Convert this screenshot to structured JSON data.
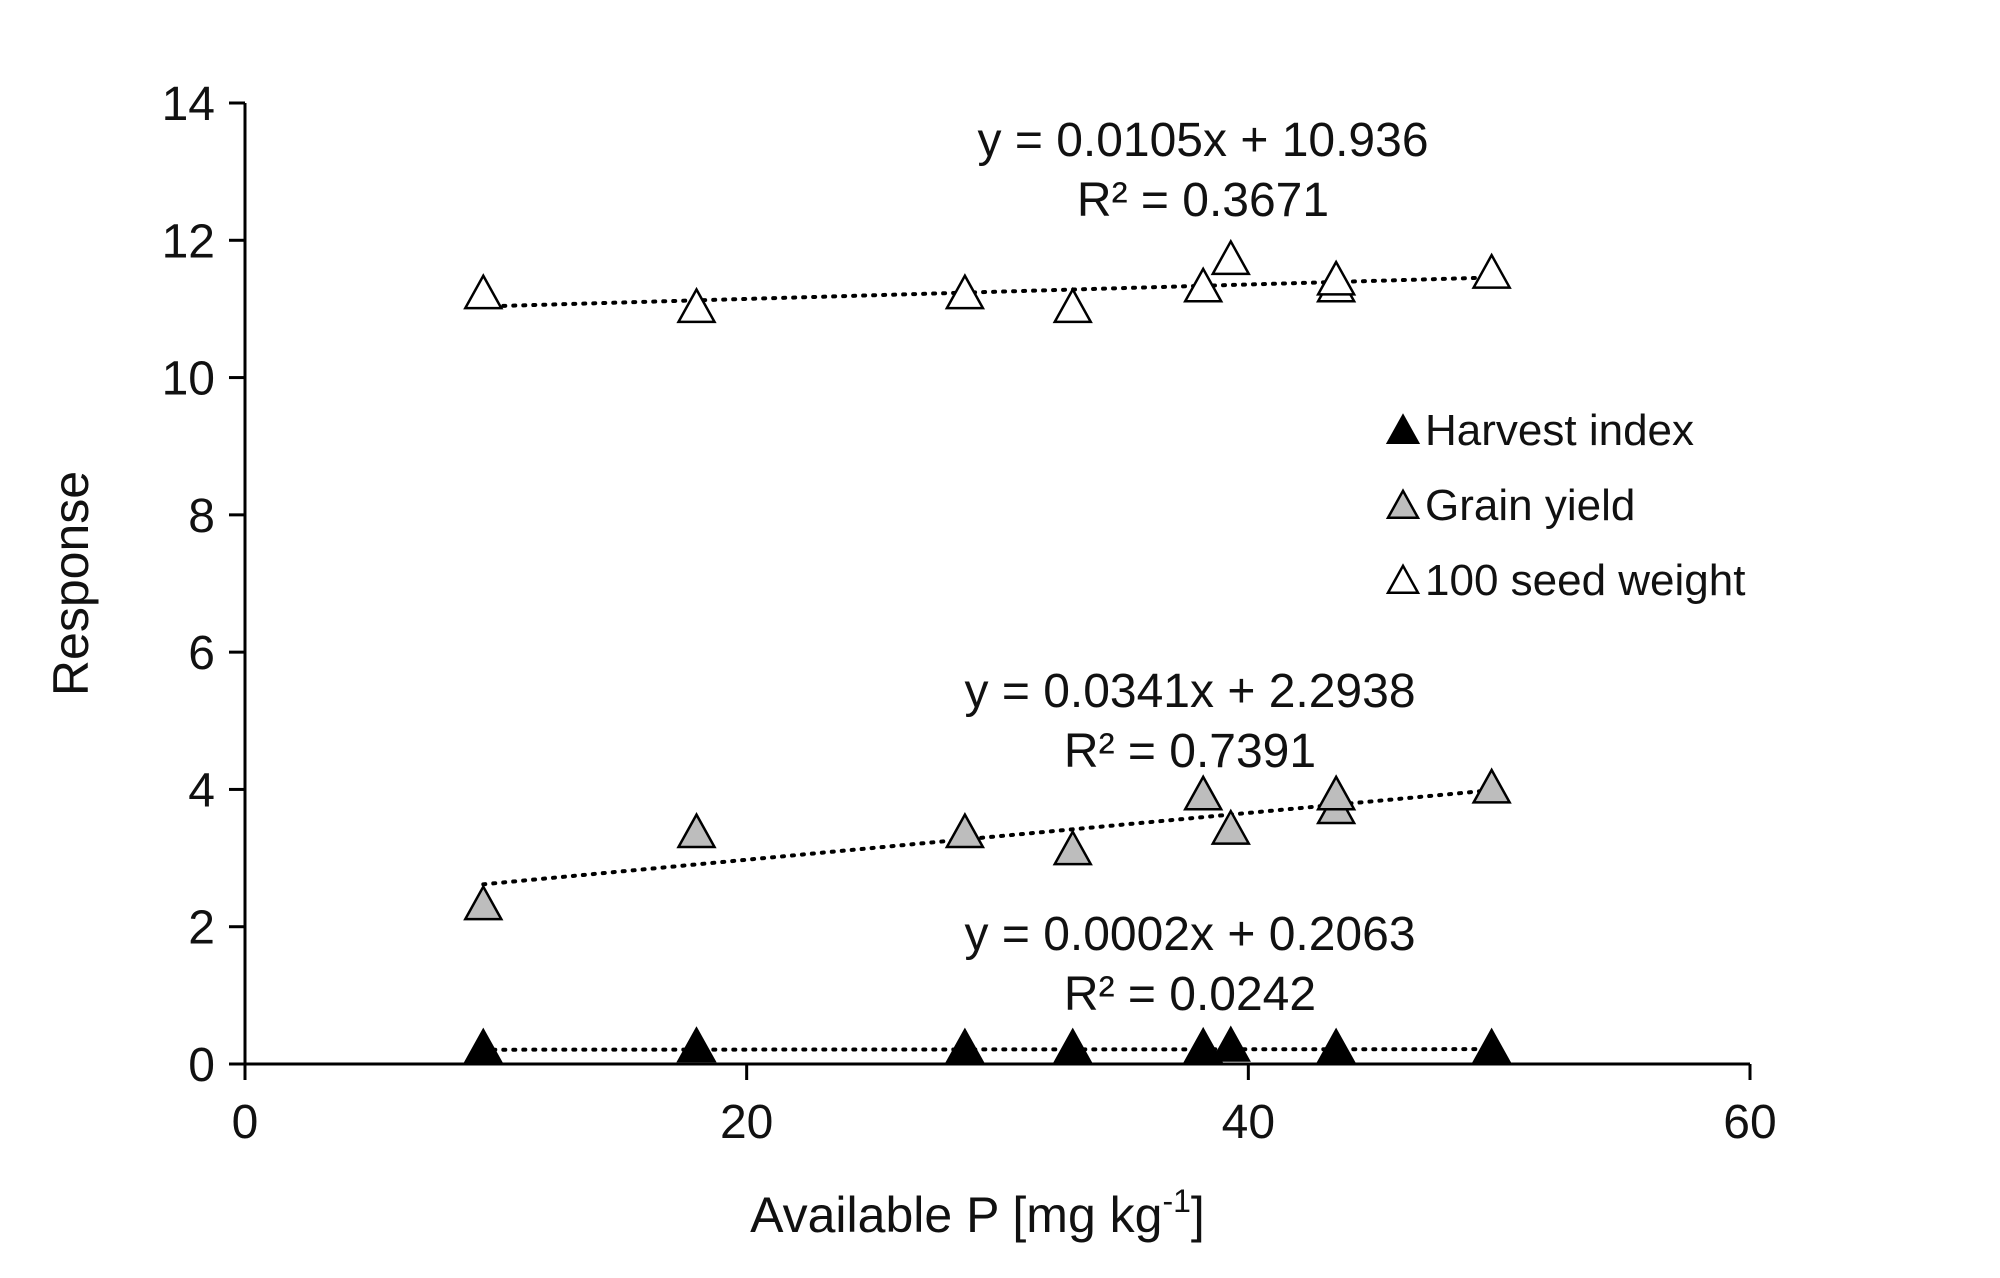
{
  "chart_data": {
    "type": "scatter",
    "xlabel": "Available P [mg kg",
    "xlabel_sup": "-1",
    "xlabel_end": "]",
    "ylabel": "Response",
    "xlim": [
      0,
      60
    ],
    "ylim": [
      0,
      14
    ],
    "xticks": [
      0,
      20,
      40,
      60
    ],
    "yticks": [
      0,
      2,
      4,
      6,
      8,
      10,
      12,
      14
    ],
    "x": [
      9.5,
      18,
      28.7,
      33,
      38.2,
      39.3,
      43.5,
      49.7
    ],
    "grid": false,
    "legend_position": "right",
    "series": [
      {
        "name": "Harvest index",
        "color": "#000000",
        "marker": "filled-triangle",
        "values": [
          0.21,
          0.23,
          0.21,
          0.21,
          0.22,
          0.24,
          0.21,
          0.21
        ],
        "trend": {
          "slope": 0.0002,
          "intercept": 0.2063
        },
        "equation": "y = 0.0002x + 0.2063",
        "r2": "R² = 0.0242"
      },
      {
        "name": "Grain yield",
        "color": "#bdbdbd",
        "marker": "gray-triangle",
        "values": [
          2.3,
          3.35,
          3.35,
          3.1,
          3.9,
          3.4,
          3.7,
          4.0
        ],
        "values_extra": [
          {
            "x": 43.5,
            "y": 3.9
          }
        ],
        "trend": {
          "slope": 0.0341,
          "intercept": 2.2938
        },
        "equation": "y = 0.0341x + 2.2938",
        "r2": "R² = 0.7391"
      },
      {
        "name": "100 seed weight",
        "color": "#ffffff",
        "marker": "open-triangle",
        "values": [
          11.2,
          11.0,
          11.2,
          11.0,
          11.3,
          11.7,
          11.3,
          11.5
        ],
        "values_extra": [
          {
            "x": 43.5,
            "y": 11.4
          }
        ],
        "trend": {
          "slope": 0.0105,
          "intercept": 10.936
        },
        "equation": "y = 0.0105x + 10.936",
        "r2": "R² = 0.3671"
      }
    ]
  }
}
